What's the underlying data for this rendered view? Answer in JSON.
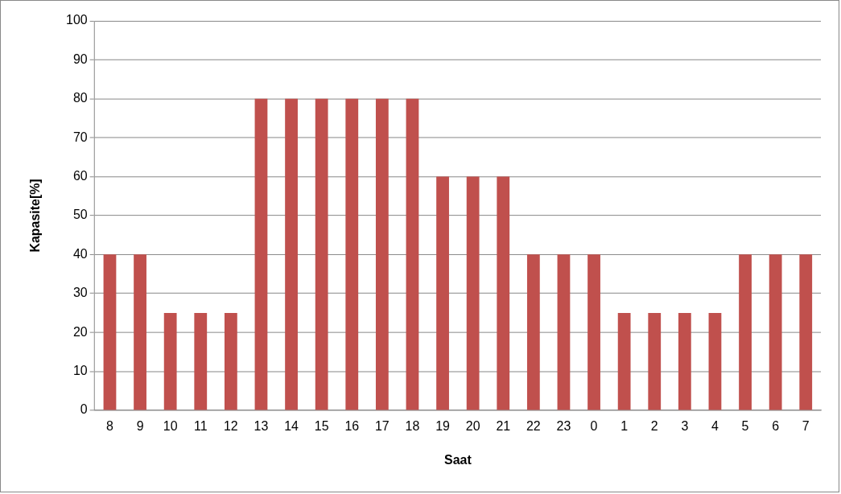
{
  "chart_data": {
    "type": "bar",
    "xlabel": "Saat",
    "ylabel": "Kapasite[%]",
    "categories": [
      "8",
      "9",
      "10",
      "11",
      "12",
      "13",
      "14",
      "15",
      "16",
      "17",
      "18",
      "19",
      "20",
      "21",
      "22",
      "23",
      "0",
      "1",
      "2",
      "3",
      "4",
      "5",
      "6",
      "7"
    ],
    "values": [
      40,
      40,
      25,
      25,
      25,
      80,
      80,
      80,
      80,
      80,
      80,
      60,
      60,
      60,
      40,
      40,
      40,
      25,
      25,
      25,
      25,
      40,
      40,
      40
    ],
    "color": "#c0504d",
    "ylim": [
      0,
      100
    ],
    "yticks": [
      0,
      10,
      20,
      30,
      40,
      50,
      60,
      70,
      80,
      90,
      100
    ],
    "grid": "y",
    "legend": false
  }
}
